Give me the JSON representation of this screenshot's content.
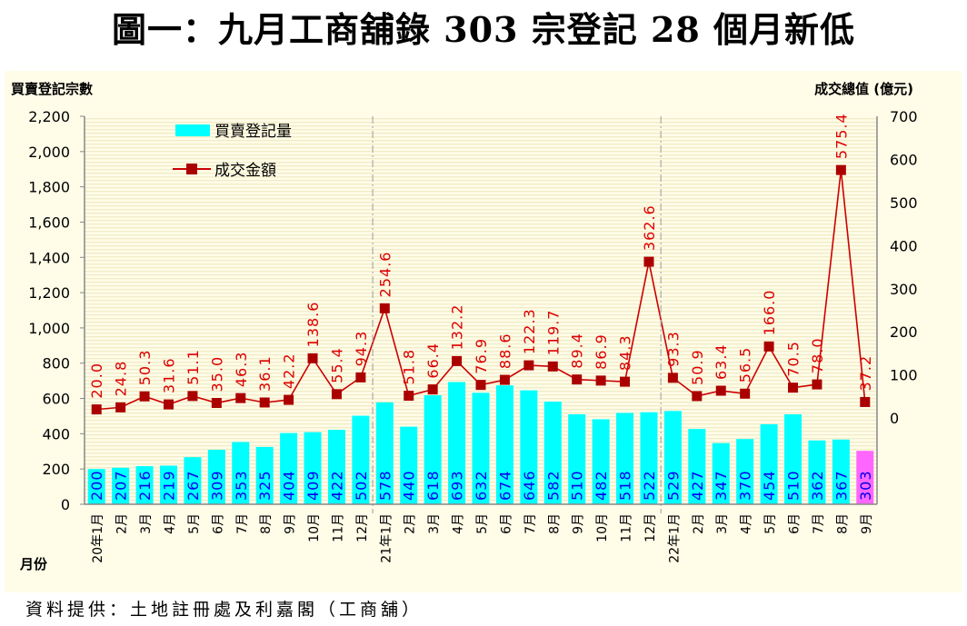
{
  "title": "圖一：九月工商舖錄 303 宗登記  28 個月新低",
  "source": "資料提供：土地註冊處及利嘉閣（工商舖）",
  "chart_data": {
    "type": "bar+line",
    "title": "圖一：九月工商舖錄 303 宗登記  28 個月新低",
    "xlabel": "月份",
    "ylabel_left": "買賣登記宗數",
    "ylabel_right": "成交總值 (億元)",
    "ylim_left": [
      0,
      2200
    ],
    "yticks_left": [
      "0",
      "200",
      "400",
      "600",
      "800",
      "1,000",
      "1,200",
      "1,400",
      "1,600",
      "1,800",
      "2,000",
      "2,200"
    ],
    "ylim_right": [
      -200,
      700
    ],
    "yticks_right": [
      "0",
      "100",
      "200",
      "300",
      "400",
      "500",
      "600",
      "700"
    ],
    "legend_position": "top-left",
    "categories": [
      "20年1月",
      "2月",
      "3月",
      "4月",
      "5月",
      "6月",
      "7月",
      "8月",
      "9月",
      "10月",
      "11月",
      "12月",
      "21年1月",
      "2月",
      "3月",
      "4月",
      "5月",
      "6月",
      "7月",
      "8月",
      "9月",
      "10月",
      "11月",
      "12月",
      "22年1月",
      "2月",
      "3月",
      "4月",
      "5月",
      "6月",
      "7月",
      "8月",
      "9月"
    ],
    "series": [
      {
        "name": "買賣登記量",
        "type": "bar",
        "axis": "left",
        "color": "#00ffff",
        "highlight_color": "#ff66ff",
        "values": [
          200,
          207,
          216,
          219,
          267,
          309,
          353,
          325,
          404,
          409,
          422,
          502,
          578,
          440,
          618,
          693,
          632,
          674,
          646,
          582,
          510,
          482,
          518,
          522,
          529,
          427,
          347,
          370,
          454,
          510,
          362,
          367,
          303
        ]
      },
      {
        "name": "成交金額",
        "type": "line",
        "axis": "right",
        "color": "#cc0000",
        "values": [
          "20.0",
          "24.8",
          "50.3",
          "31.6",
          "51.1",
          "35.0",
          "46.3",
          "36.1",
          "42.2",
          "138.6",
          "55.4",
          "94.3",
          "254.6",
          "51.8",
          "66.4",
          "132.2",
          "76.9",
          "88.6",
          "122.3",
          "119.7",
          "89.4",
          "86.9",
          "84.3",
          "362.6",
          "93.3",
          "50.9",
          "63.4",
          "56.5",
          "166.0",
          "70.5",
          "78.0",
          "575.4",
          "37.2"
        ]
      }
    ],
    "year_separators_after": [
      "12月",
      "12月"
    ]
  }
}
